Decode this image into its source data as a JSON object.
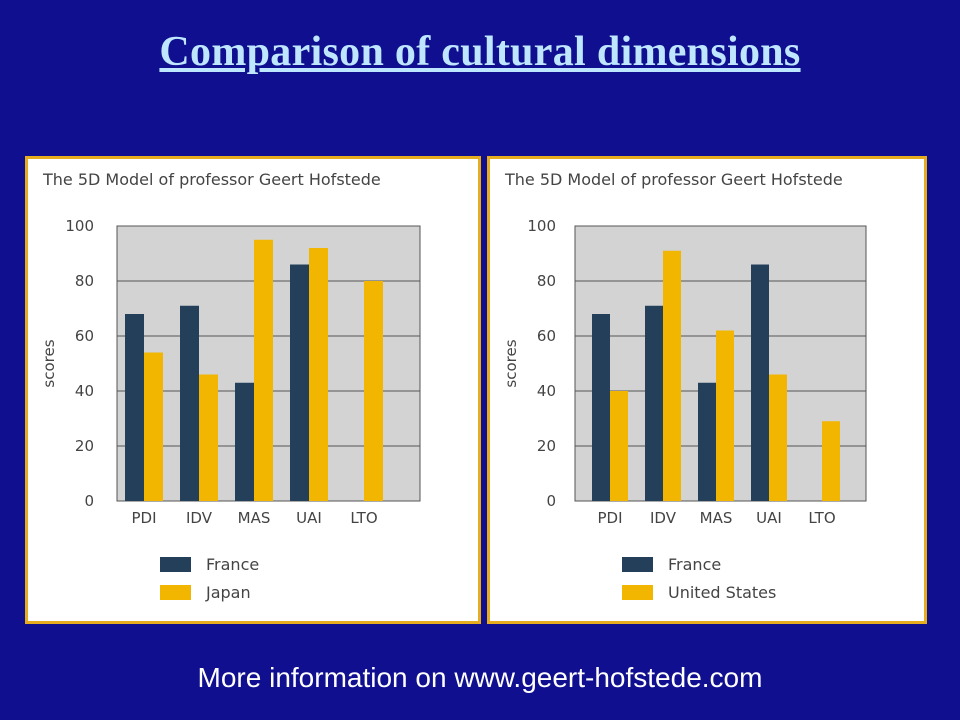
{
  "slide": {
    "title": "Comparison of cultural dimensions",
    "footer": "More information on www.geert-hofstede.com"
  },
  "colors": {
    "background": "#0f0f8f",
    "title": "#bfe6ff",
    "panel_border": "#e6ad1e",
    "plot_bg": "#d3d3d3",
    "france": "#243f5a",
    "compare": "#f2b500"
  },
  "chart_data": [
    {
      "type": "bar",
      "title": "The 5D Model of professor Geert Hofstede",
      "xlabel": "",
      "ylabel": "scores",
      "ylim": [
        0,
        100
      ],
      "yticks": [
        0,
        20,
        40,
        60,
        80,
        100
      ],
      "categories": [
        "PDI",
        "IDV",
        "MAS",
        "UAI",
        "LTO"
      ],
      "legend_position": "bottom",
      "grid": true,
      "series": [
        {
          "name": "France",
          "values": [
            68,
            71,
            43,
            86,
            null
          ],
          "color": "#243f5a"
        },
        {
          "name": "Japan",
          "values": [
            54,
            46,
            95,
            92,
            80
          ],
          "color": "#f2b500"
        }
      ]
    },
    {
      "type": "bar",
      "title": "The 5D Model of professor Geert Hofstede",
      "xlabel": "",
      "ylabel": "scores",
      "ylim": [
        0,
        100
      ],
      "yticks": [
        0,
        20,
        40,
        60,
        80,
        100
      ],
      "categories": [
        "PDI",
        "IDV",
        "MAS",
        "UAI",
        "LTO"
      ],
      "legend_position": "bottom",
      "grid": true,
      "series": [
        {
          "name": "France",
          "values": [
            68,
            71,
            43,
            86,
            null
          ],
          "color": "#243f5a"
        },
        {
          "name": "United States",
          "values": [
            40,
            91,
            62,
            46,
            29
          ],
          "color": "#f2b500"
        }
      ]
    }
  ]
}
